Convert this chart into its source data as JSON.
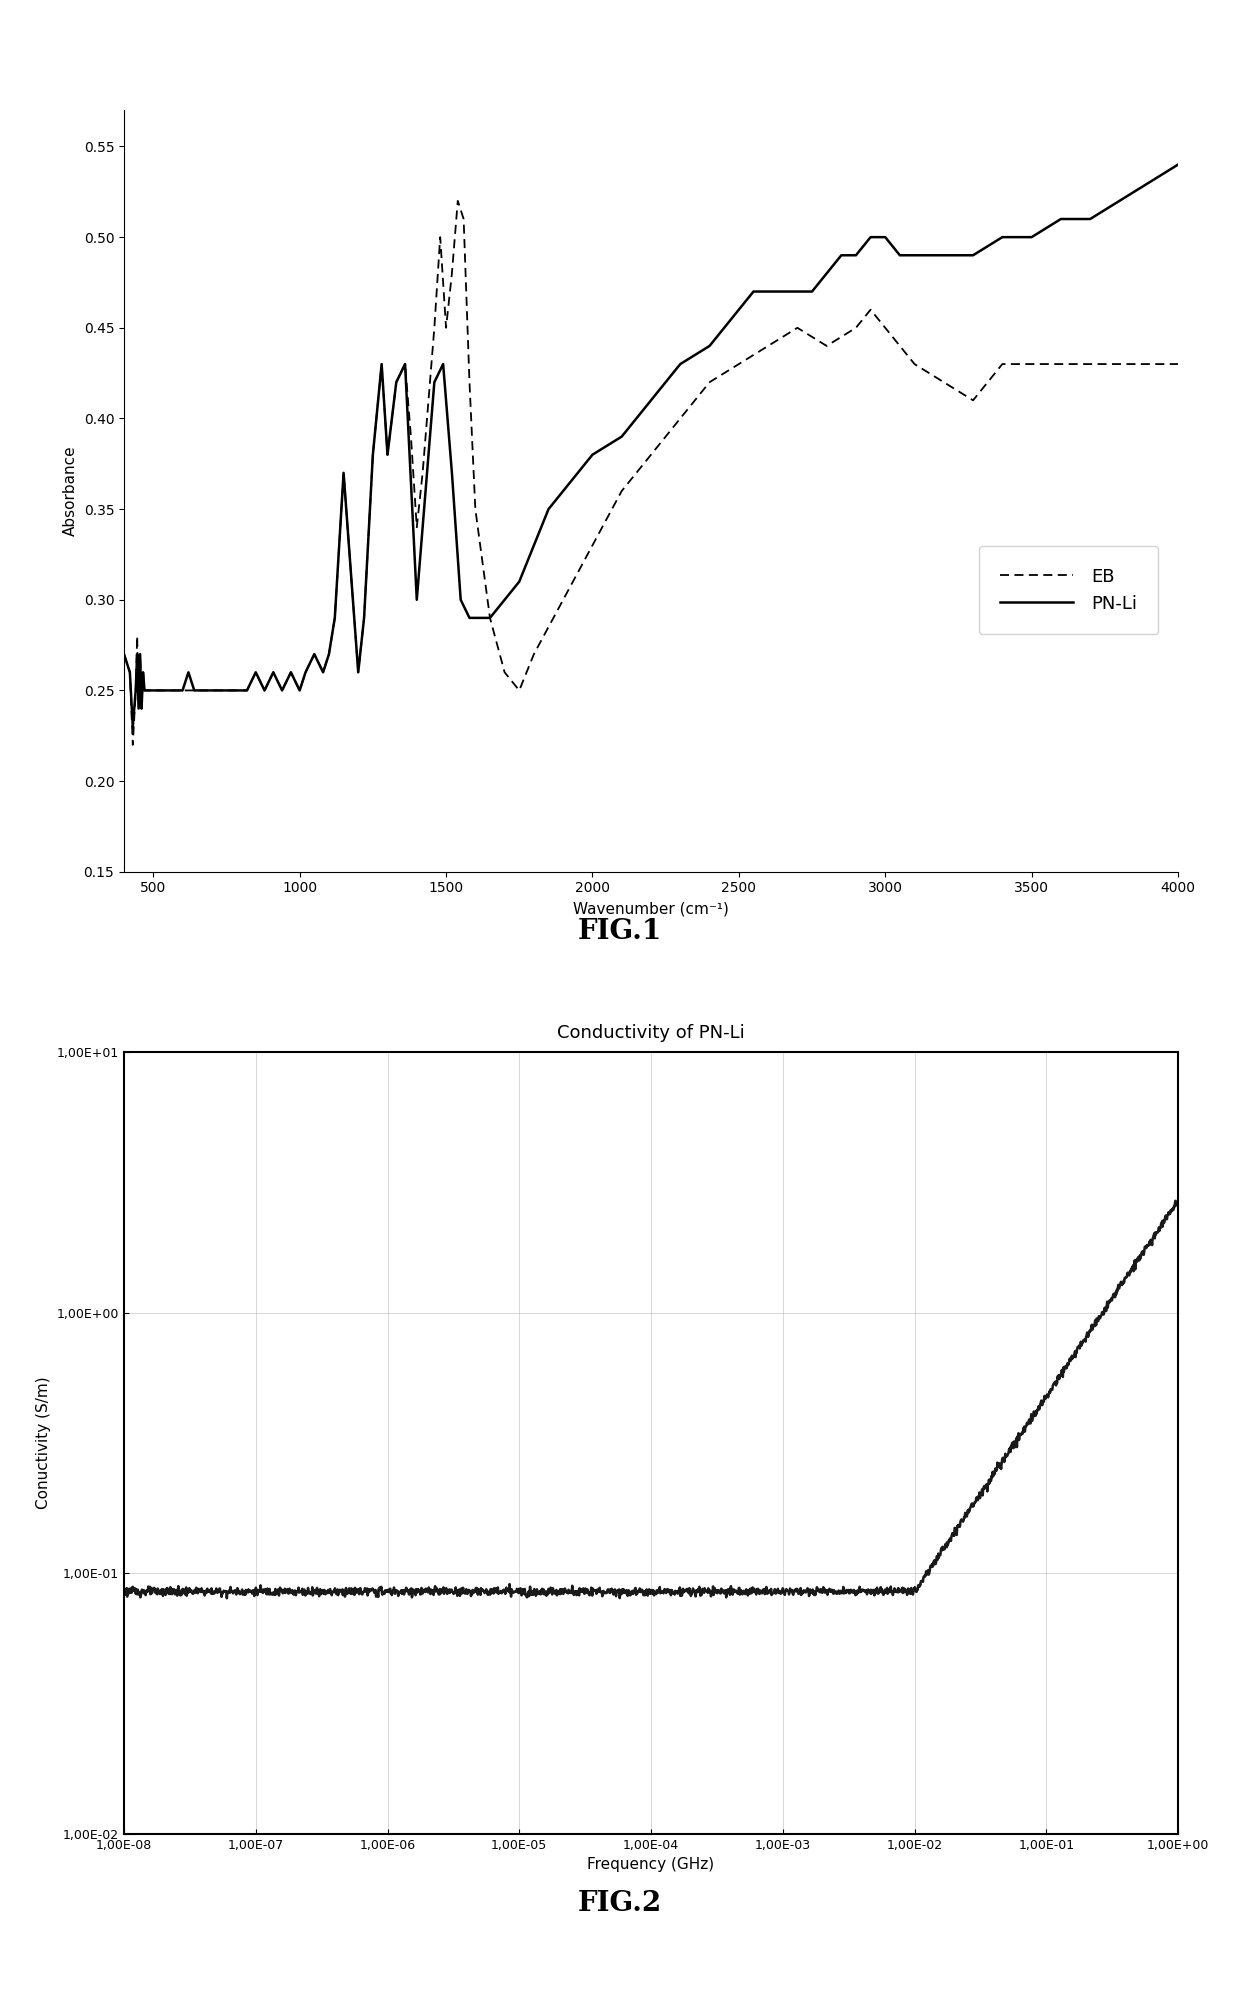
{
  "fig1": {
    "xlabel": "Wavenumber (cm⁻¹)",
    "ylabel": "Absorbance",
    "xlim": [
      400,
      4000
    ],
    "ylim": [
      0.15,
      0.57
    ],
    "yticks": [
      0.15,
      0.2,
      0.25,
      0.3,
      0.35,
      0.4,
      0.45,
      0.5,
      0.55
    ],
    "xticks": [
      500,
      1000,
      1500,
      2000,
      2500,
      3000,
      3500,
      4000
    ],
    "fig_label": "FIG.1",
    "eb_x": [
      400,
      420,
      430,
      440,
      445,
      450,
      455,
      460,
      465,
      470,
      480,
      490,
      500,
      510,
      520,
      540,
      560,
      580,
      600,
      620,
      640,
      660,
      680,
      700,
      720,
      740,
      760,
      780,
      800,
      820,
      850,
      880,
      910,
      940,
      970,
      1000,
      1020,
      1050,
      1080,
      1100,
      1120,
      1150,
      1200,
      1220,
      1250,
      1280,
      1300,
      1330,
      1360,
      1380,
      1400,
      1420,
      1440,
      1460,
      1480,
      1500,
      1520,
      1540,
      1560,
      1580,
      1600,
      1650,
      1700,
      1750,
      1800,
      1900,
      2000,
      2100,
      2200,
      2300,
      2400,
      2500,
      2600,
      2700,
      2800,
      2900,
      2950,
      3000,
      3050,
      3100,
      3200,
      3300,
      3400,
      3500,
      3600,
      3700,
      3800,
      3900,
      4000
    ],
    "eb_y": [
      0.27,
      0.26,
      0.22,
      0.25,
      0.28,
      0.24,
      0.27,
      0.24,
      0.26,
      0.25,
      0.25,
      0.25,
      0.25,
      0.25,
      0.25,
      0.25,
      0.25,
      0.25,
      0.25,
      0.25,
      0.25,
      0.25,
      0.25,
      0.25,
      0.25,
      0.25,
      0.25,
      0.25,
      0.25,
      0.25,
      0.26,
      0.25,
      0.26,
      0.25,
      0.26,
      0.25,
      0.26,
      0.27,
      0.26,
      0.27,
      0.29,
      0.37,
      0.26,
      0.29,
      0.38,
      0.43,
      0.38,
      0.42,
      0.43,
      0.39,
      0.34,
      0.37,
      0.41,
      0.45,
      0.5,
      0.45,
      0.48,
      0.52,
      0.51,
      0.42,
      0.35,
      0.29,
      0.26,
      0.25,
      0.27,
      0.3,
      0.33,
      0.36,
      0.38,
      0.4,
      0.42,
      0.43,
      0.44,
      0.45,
      0.44,
      0.45,
      0.46,
      0.45,
      0.44,
      0.43,
      0.42,
      0.41,
      0.43,
      0.43,
      0.43,
      0.43,
      0.43,
      0.43,
      0.43
    ],
    "pnli_x": [
      400,
      420,
      430,
      440,
      445,
      450,
      455,
      460,
      465,
      470,
      480,
      490,
      500,
      510,
      520,
      540,
      560,
      580,
      600,
      620,
      640,
      660,
      680,
      700,
      720,
      740,
      760,
      780,
      800,
      820,
      850,
      880,
      910,
      940,
      970,
      1000,
      1020,
      1050,
      1080,
      1100,
      1120,
      1150,
      1200,
      1220,
      1250,
      1280,
      1300,
      1330,
      1360,
      1400,
      1430,
      1460,
      1490,
      1520,
      1550,
      1580,
      1600,
      1650,
      1700,
      1750,
      1800,
      1850,
      1900,
      1950,
      2000,
      2100,
      2150,
      2200,
      2250,
      2300,
      2400,
      2450,
      2500,
      2550,
      2600,
      2650,
      2700,
      2750,
      2800,
      2850,
      2900,
      2950,
      3000,
      3050,
      3100,
      3200,
      3300,
      3400,
      3500,
      3600,
      3700,
      3800,
      3900,
      4000
    ],
    "pnli_y": [
      0.27,
      0.26,
      0.23,
      0.25,
      0.27,
      0.24,
      0.27,
      0.24,
      0.26,
      0.25,
      0.25,
      0.25,
      0.25,
      0.25,
      0.25,
      0.25,
      0.25,
      0.25,
      0.25,
      0.26,
      0.25,
      0.25,
      0.25,
      0.25,
      0.25,
      0.25,
      0.25,
      0.25,
      0.25,
      0.25,
      0.26,
      0.25,
      0.26,
      0.25,
      0.26,
      0.25,
      0.26,
      0.27,
      0.26,
      0.27,
      0.29,
      0.37,
      0.26,
      0.29,
      0.38,
      0.43,
      0.38,
      0.42,
      0.43,
      0.3,
      0.36,
      0.42,
      0.43,
      0.37,
      0.3,
      0.29,
      0.29,
      0.29,
      0.3,
      0.31,
      0.33,
      0.35,
      0.36,
      0.37,
      0.38,
      0.39,
      0.4,
      0.41,
      0.42,
      0.43,
      0.44,
      0.45,
      0.46,
      0.47,
      0.47,
      0.47,
      0.47,
      0.47,
      0.48,
      0.49,
      0.49,
      0.5,
      0.5,
      0.49,
      0.49,
      0.49,
      0.49,
      0.5,
      0.5,
      0.51,
      0.51,
      0.52,
      0.53,
      0.54
    ]
  },
  "fig2": {
    "title": "Conductivity of PN-Li",
    "xlabel": "Frequency (GHz)",
    "ylabel": "Conuctivity (S/m)",
    "ytick_labels": [
      "1,00E-02",
      "1,00E-01",
      "1,00E+00",
      "1,00E+01"
    ],
    "xtick_labels": [
      "1,00E-08",
      "1,00E-07",
      "1,00E-06",
      "1,00E-05",
      "1,00E-04",
      "1,00E-03",
      "1,00E-02",
      "1,00E-01",
      "1,00E+00"
    ],
    "fig_label": "FIG.2"
  },
  "background_color": "#ffffff",
  "line_color": "#000000"
}
